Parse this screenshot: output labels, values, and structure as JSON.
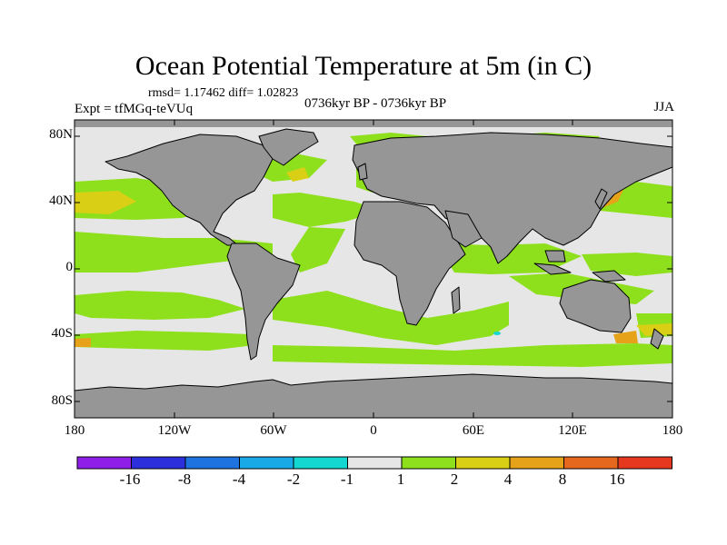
{
  "title": "Ocean Potential Temperature at 5m (in C)",
  "stats": "rmsd= 1.17462 diff= 1.02823",
  "experiment": "Expt = tfMGq-teVUq",
  "period": "0736kyr BP - 0736kyr BP",
  "season": "JJA",
  "y_ticks": [
    "80N",
    "40N",
    "0",
    "40S",
    "80S"
  ],
  "x_ticks": [
    "180",
    "120W",
    "60W",
    "0",
    "60E",
    "120E",
    "180"
  ],
  "colorbar": {
    "labels": [
      "-16",
      "-8",
      "-4",
      "-2",
      "-1",
      "1",
      "2",
      "4",
      "8",
      "16"
    ],
    "colors": [
      "#8f1ee8",
      "#2b2fdc",
      "#1e73e0",
      "#19a9e6",
      "#14d7d2",
      "#e6e6e6",
      "#8ee01c",
      "#d9cf14",
      "#e6a31a",
      "#e6671e",
      "#e6381e"
    ]
  },
  "colors": {
    "land": "#969696",
    "ocean_neutral": "#e6e6e6",
    "ocean_warm_small": "#8ee01c",
    "ocean_warm_mid": "#d9cf14",
    "ocean_warm_high": "#e6a31a",
    "ocean_cold": "#14d7d2"
  }
}
